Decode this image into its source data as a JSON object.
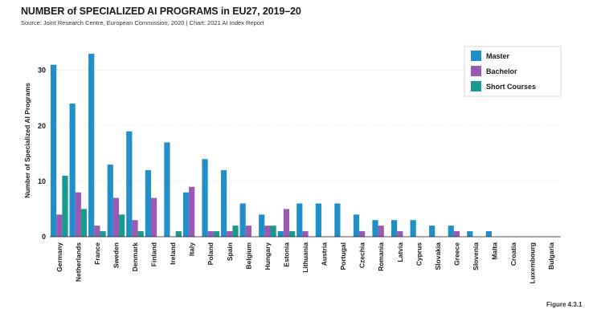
{
  "title": "NUMBER of SPECIALIZED AI PROGRAMS in EU27, 2019–20",
  "subtitle": "Source: Joint Research Centre, European Commission, 2020 | Chart: 2021 AI Index Report",
  "figure_label": "Figure 4.3.1",
  "chart_data": {
    "type": "bar",
    "ylabel": "Number of Specialized AI Programs",
    "xlabel": "",
    "ylim": [
      0,
      34
    ],
    "yticks": [
      0,
      10,
      20,
      30
    ],
    "grid": true,
    "legend_position": "top-right",
    "categories": [
      "Germany",
      "Netherlands",
      "France",
      "Sweden",
      "Denmark",
      "Finland",
      "Ireland",
      "Italy",
      "Poland",
      "Spain",
      "Belgium",
      "Hungary",
      "Estonia",
      "Lithuania",
      "Austria",
      "Portugal",
      "Czechia",
      "Romania",
      "Latvia",
      "Cyprus",
      "Slovakia",
      "Greece",
      "Slovenia",
      "Malta",
      "Croatia",
      "Luxembourg",
      "Bulgaria"
    ],
    "series": [
      {
        "name": "Master",
        "color": "#1f8ec9",
        "values": [
          31,
          24,
          33,
          13,
          19,
          12,
          17,
          8,
          14,
          12,
          6,
          4,
          1,
          6,
          6,
          6,
          4,
          3,
          3,
          3,
          2,
          2,
          1,
          1,
          0,
          0,
          0
        ]
      },
      {
        "name": "Bachelor",
        "color": "#9b59b6",
        "values": [
          4,
          8,
          2,
          7,
          3,
          7,
          0,
          9,
          1,
          1,
          2,
          2,
          5,
          1,
          0,
          0,
          1,
          2,
          1,
          0,
          0,
          1,
          0,
          0,
          0,
          0,
          0
        ]
      },
      {
        "name": "Short Courses",
        "color": "#1a9a8e",
        "values": [
          11,
          5,
          1,
          4,
          1,
          0,
          1,
          0,
          1,
          2,
          0,
          2,
          1,
          0,
          0,
          0,
          0,
          0,
          0,
          0,
          0,
          0,
          0,
          0,
          0,
          0,
          0
        ]
      }
    ]
  }
}
